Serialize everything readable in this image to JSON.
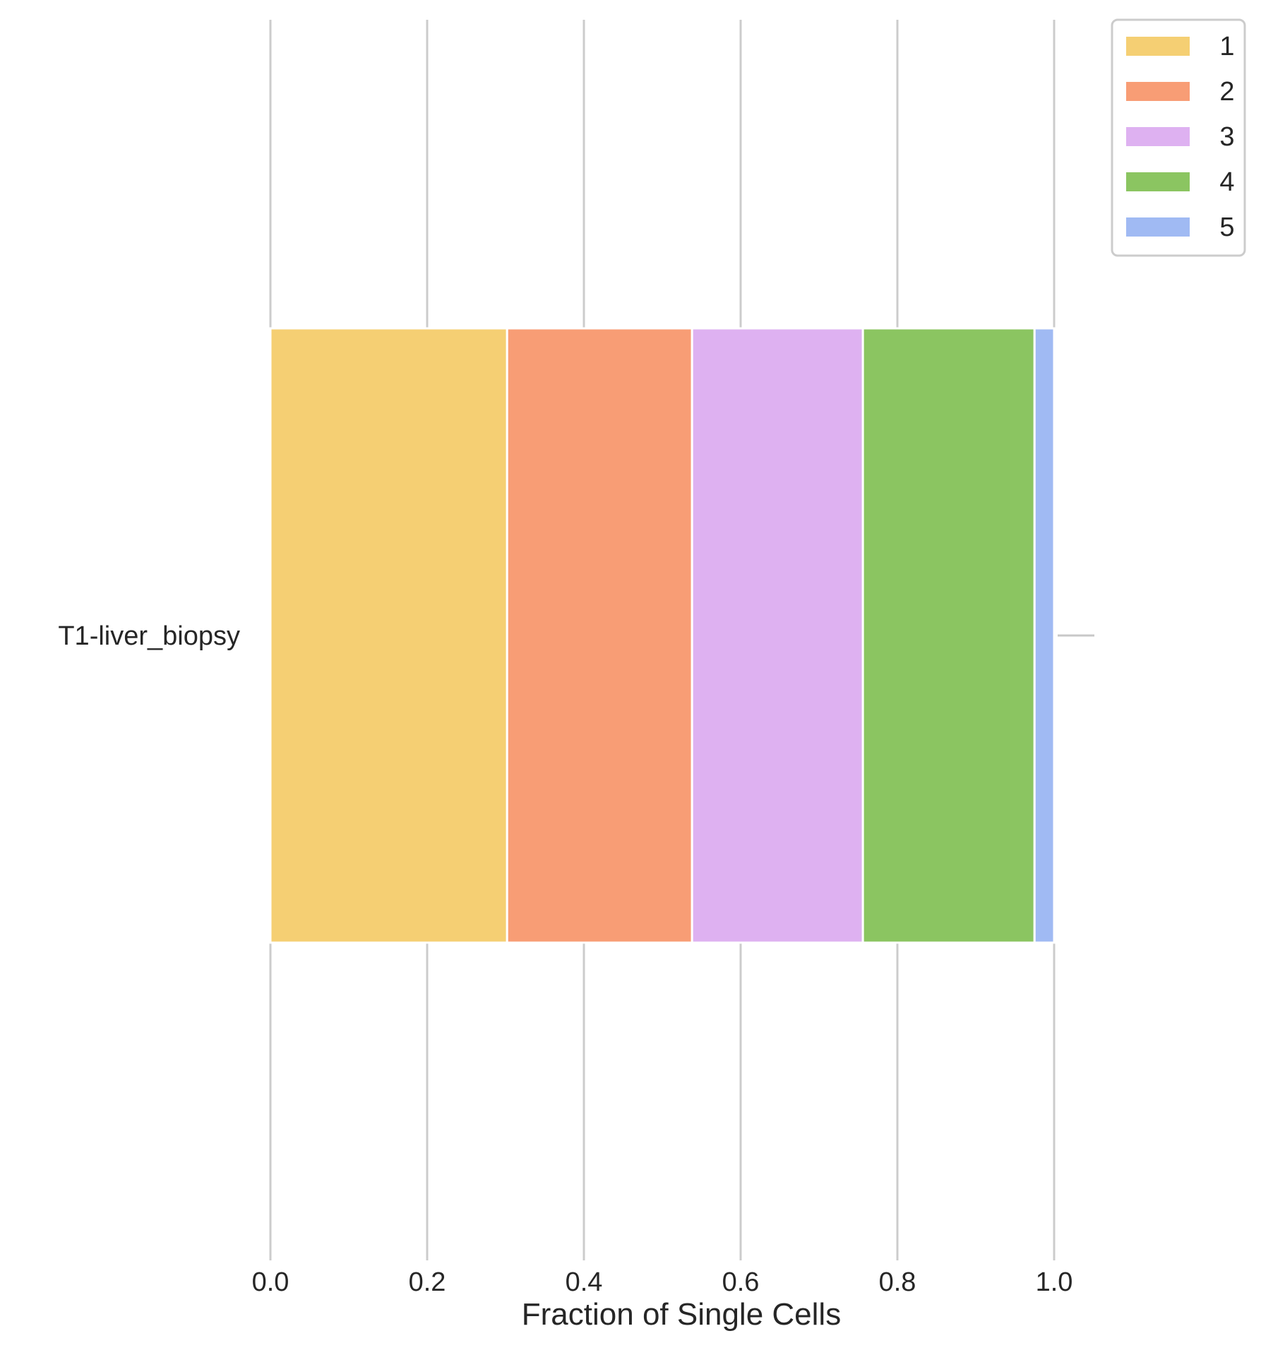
{
  "chart_data": {
    "type": "bar",
    "orientation": "horizontal",
    "stacked": true,
    "categories": [
      "T1-liver_biopsy"
    ],
    "series": [
      {
        "name": "1",
        "values": [
          0.302
        ],
        "color": "#F5CF73"
      },
      {
        "name": "2",
        "values": [
          0.236
        ],
        "color": "#F89D75"
      },
      {
        "name": "3",
        "values": [
          0.218
        ],
        "color": "#DEB1F1"
      },
      {
        "name": "4",
        "values": [
          0.219
        ],
        "color": "#8BC561"
      },
      {
        "name": "5",
        "values": [
          0.025
        ],
        "color": "#A0BAF3"
      }
    ],
    "title": "",
    "xlabel": "Fraction of Single Cells",
    "ylabel": "",
    "xlim": [
      0.0,
      1.05
    ],
    "xticks": [
      "0.0",
      "0.2",
      "0.4",
      "0.6",
      "0.8",
      "1.0"
    ],
    "grid": true,
    "legend": {
      "position": "top-right",
      "entries": [
        "1",
        "2",
        "3",
        "4",
        "5"
      ]
    }
  }
}
